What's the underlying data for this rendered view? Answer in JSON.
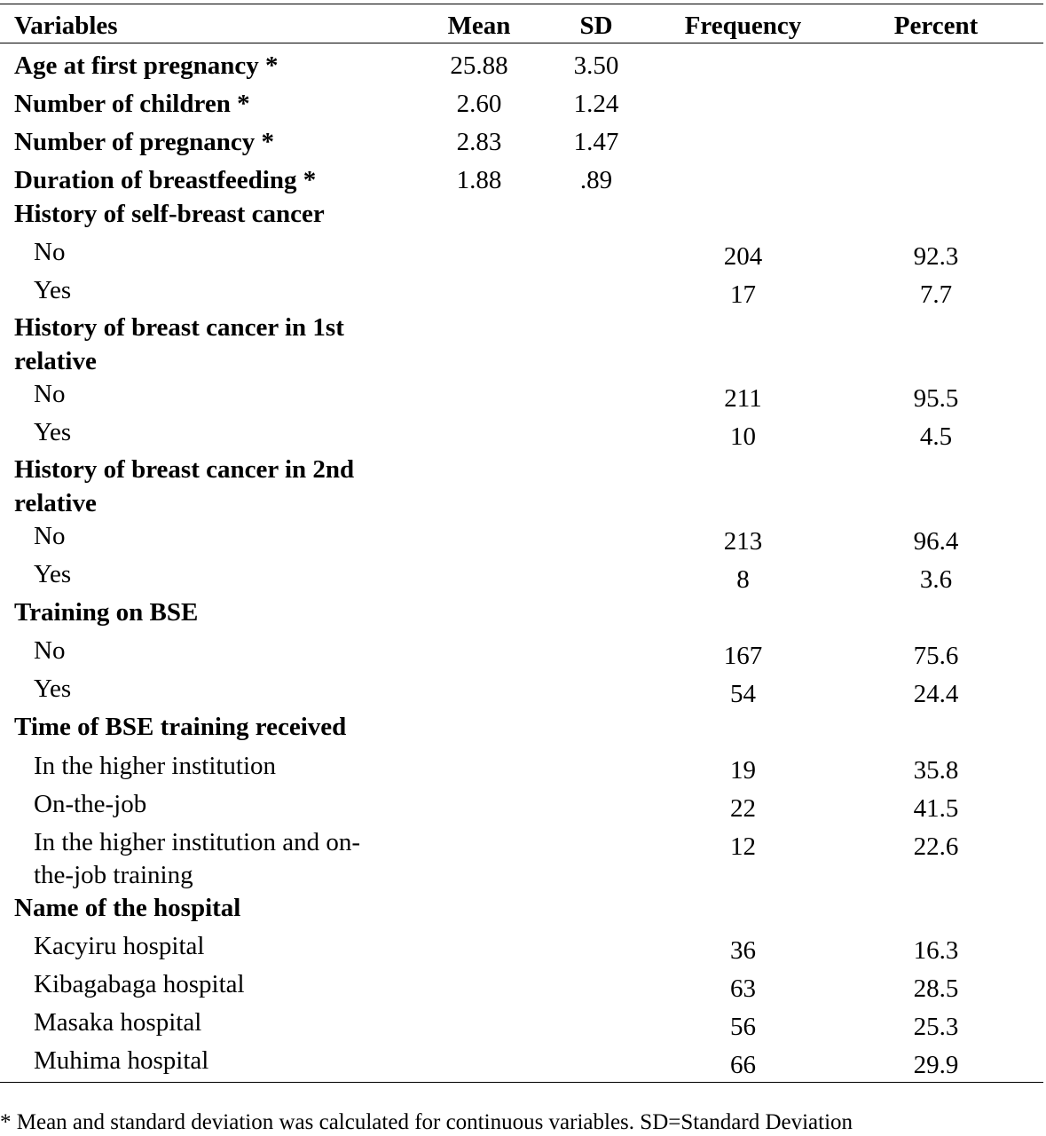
{
  "header": {
    "variables": "Variables",
    "mean": "Mean",
    "sd": "SD",
    "frequency": "Frequency",
    "percent": "Percent"
  },
  "continuous": [
    {
      "label": "Age at first pregnancy *",
      "mean": "25.88",
      "sd": "3.50"
    },
    {
      "label": "Number of children *",
      "mean": "2.60",
      "sd": "1.24"
    },
    {
      "label": "Number of pregnancy *",
      "mean": "2.83",
      "sd": "1.47"
    },
    {
      "label": "Duration of breastfeeding *",
      "mean": "1.88",
      "sd": ".89"
    }
  ],
  "groups": {
    "self_history": {
      "title": "History of self-breast cancer",
      "rows": [
        {
          "label": "No",
          "frequency": "204",
          "percent": "92.3"
        },
        {
          "label": "Yes",
          "frequency": "17",
          "percent": "7.7"
        }
      ]
    },
    "first_relative": {
      "title_line1": "History of breast cancer in 1st",
      "title_line2": "relative",
      "rows": [
        {
          "label": "No",
          "frequency": "211",
          "percent": "95.5"
        },
        {
          "label": "Yes",
          "frequency": "10",
          "percent": "4.5"
        }
      ]
    },
    "second_relative": {
      "title_line1": "History of breast cancer in 2nd",
      "title_line2": "relative",
      "rows": [
        {
          "label": "No",
          "frequency": "213",
          "percent": "96.4"
        },
        {
          "label": "Yes",
          "frequency": "8",
          "percent": "3.6"
        }
      ]
    },
    "training": {
      "title": "Training on BSE",
      "rows": [
        {
          "label": "No",
          "frequency": "167",
          "percent": "75.6"
        },
        {
          "label": "Yes",
          "frequency": "54",
          "percent": "24.4"
        }
      ]
    },
    "training_time": {
      "title": "Time of BSE training received",
      "rows": [
        {
          "label": "In the higher institution",
          "frequency": "19",
          "percent": "35.8"
        },
        {
          "label": "On-the-job",
          "frequency": "22",
          "percent": "41.5"
        },
        {
          "label_line1": "In the higher institution and on-",
          "label_line2": "the-job training",
          "frequency": "12",
          "percent": "22.6"
        }
      ]
    },
    "hospital": {
      "title": "Name of the hospital",
      "rows": [
        {
          "label": "Kacyiru hospital",
          "frequency": "36",
          "percent": "16.3"
        },
        {
          "label": "Kibagabaga hospital",
          "frequency": "63",
          "percent": "28.5"
        },
        {
          "label": "Masaka hospital",
          "frequency": "56",
          "percent": "25.3"
        },
        {
          "label": "Muhima  hospital",
          "frequency": "66",
          "percent": "29.9"
        }
      ]
    }
  },
  "footnote": "* Mean and standard deviation was calculated for continuous variables. SD=Standard Deviation"
}
